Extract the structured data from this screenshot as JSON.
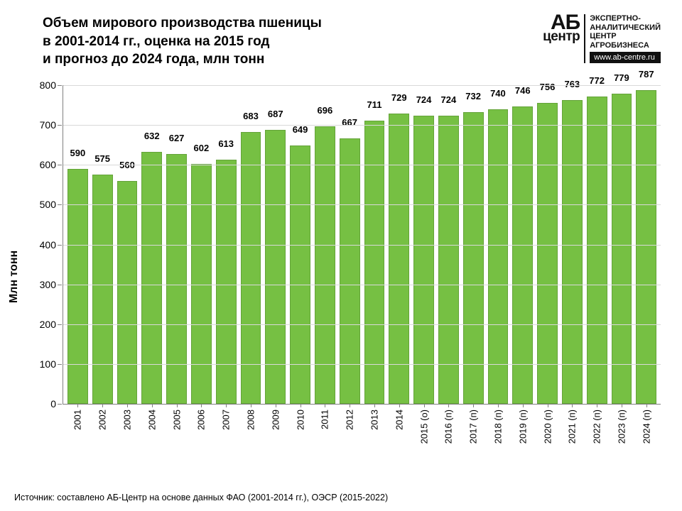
{
  "title": "Объем мирового производства пшеницы\nв 2001-2014 гг., оценка на 2015 год\nи прогноз до 2024 года, млн тонн",
  "logo": {
    "ab": "АБ",
    "centr": "центр",
    "tag1": "ЭКСПЕРТНО-",
    "tag2": "АНАЛИТИЧЕСКИЙ",
    "tag3": "ЦЕНТР",
    "tag4": "АГРОБИЗНЕСА",
    "url": "www.ab-centre.ru"
  },
  "chart": {
    "type": "bar",
    "ylabel": "Млн тонн",
    "ylim": [
      0,
      800
    ],
    "ytick_step": 100,
    "bar_color": "#76c043",
    "grid_color": "#d9d9d9",
    "axis_color": "#808080",
    "background_color": "#ffffff",
    "label_fontsize": 13,
    "label_fontweight": "bold",
    "ylabel_fontsize": 16,
    "categories": [
      "2001",
      "2002",
      "2003",
      "2004",
      "2005",
      "2006",
      "2007",
      "2008",
      "2009",
      "2010",
      "2011",
      "2012",
      "2013",
      "2014",
      "2015 (о)",
      "2016 (п)",
      "2017 (п)",
      "2018 (п)",
      "2019 (п)",
      "2020 (п)",
      "2021 (п)",
      "2022 (п)",
      "2023 (п)",
      "2024 (п)"
    ],
    "values": [
      590,
      575,
      560,
      632,
      627,
      602,
      613,
      683,
      687,
      649,
      696,
      667,
      711,
      729,
      724,
      724,
      732,
      740,
      746,
      756,
      763,
      772,
      779,
      787
    ]
  },
  "source": "Источник: составлено АБ-Центр на основе данных ФАО (2001-2014 гг.), ОЭСР (2015-2022)"
}
